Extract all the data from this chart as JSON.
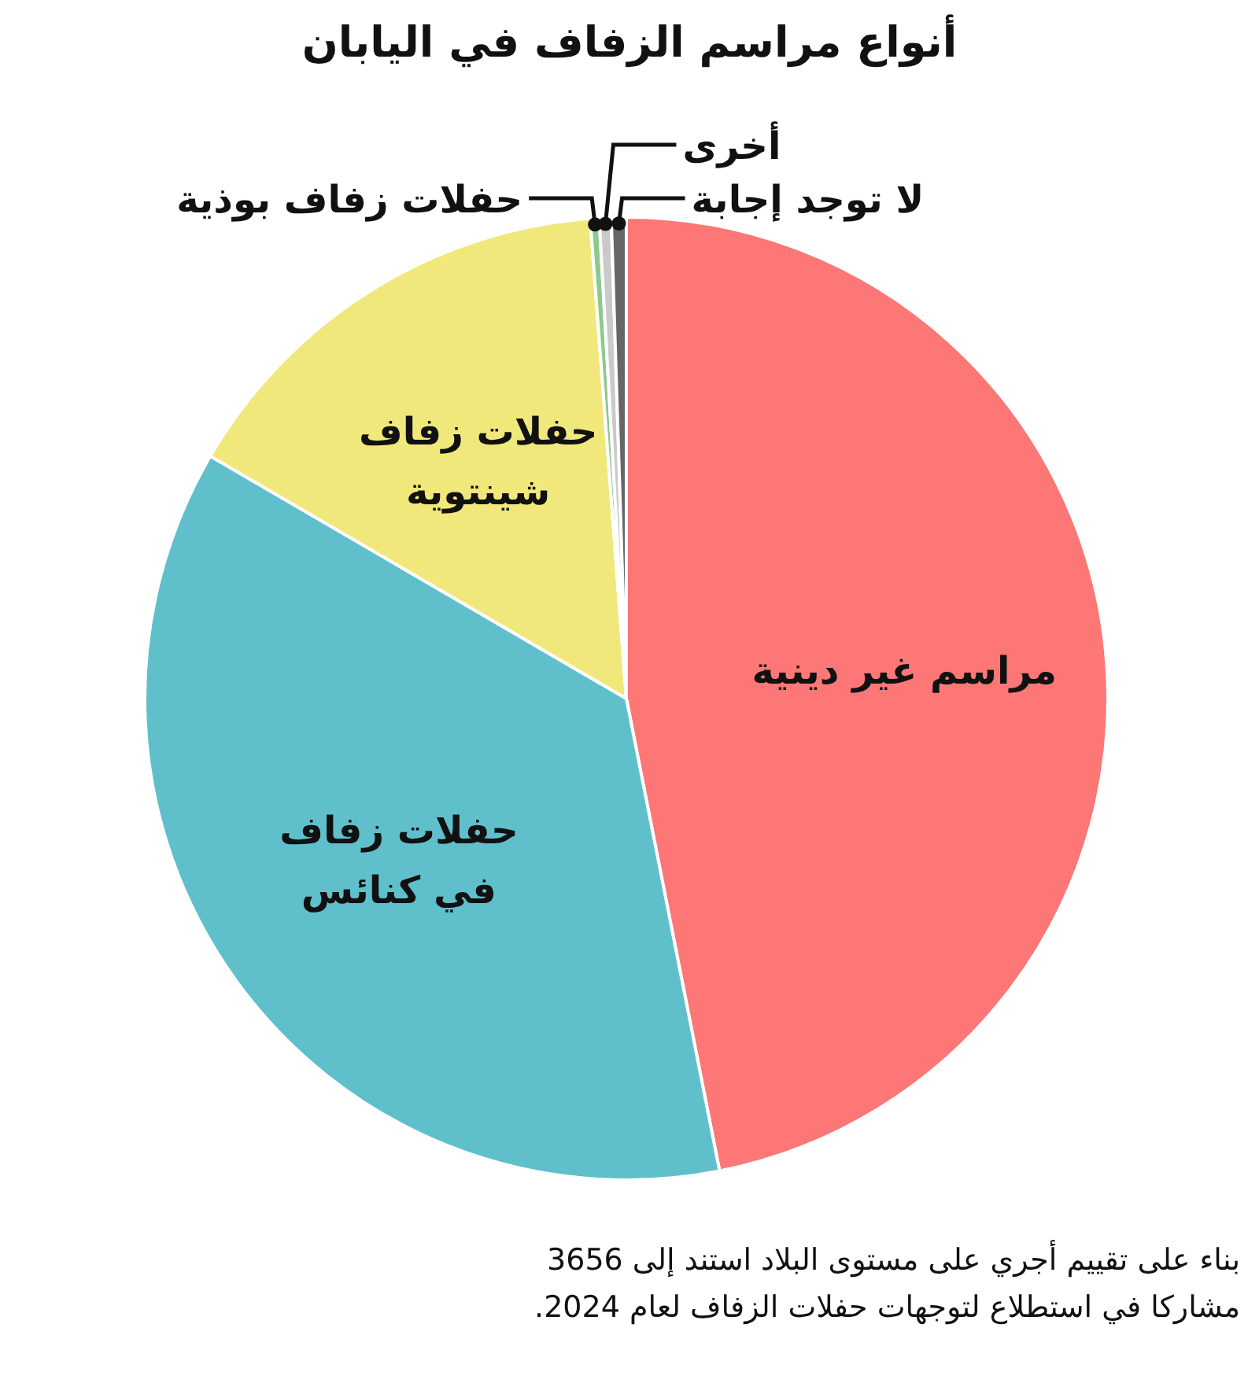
{
  "chart_data": {
    "type": "pie",
    "title": "أنواع مراسم الزفاف في اليابان",
    "categories": [
      "مراسم غير دينية",
      "حفلات زفاف في كنائس",
      "حفلات زفاف شينتوية",
      "حفلات زفاف بوذية",
      "أخرى",
      "لا توجد إجابة"
    ],
    "values": [
      46.9,
      36.5,
      15.4,
      0.3,
      0.4,
      0.5
    ],
    "colors": [
      "#fc7776",
      "#5fc0cc",
      "#f0e87b",
      "#8cc98d",
      "#cacaca",
      "#666666"
    ],
    "legend": false,
    "annotations": [
      "بناء على تقييم أجري على مستوى البلاد استند إلى 3656 مشاركا في استطلاع لتوجهات حفلات الزفاف لعام 2024."
    ]
  }
}
